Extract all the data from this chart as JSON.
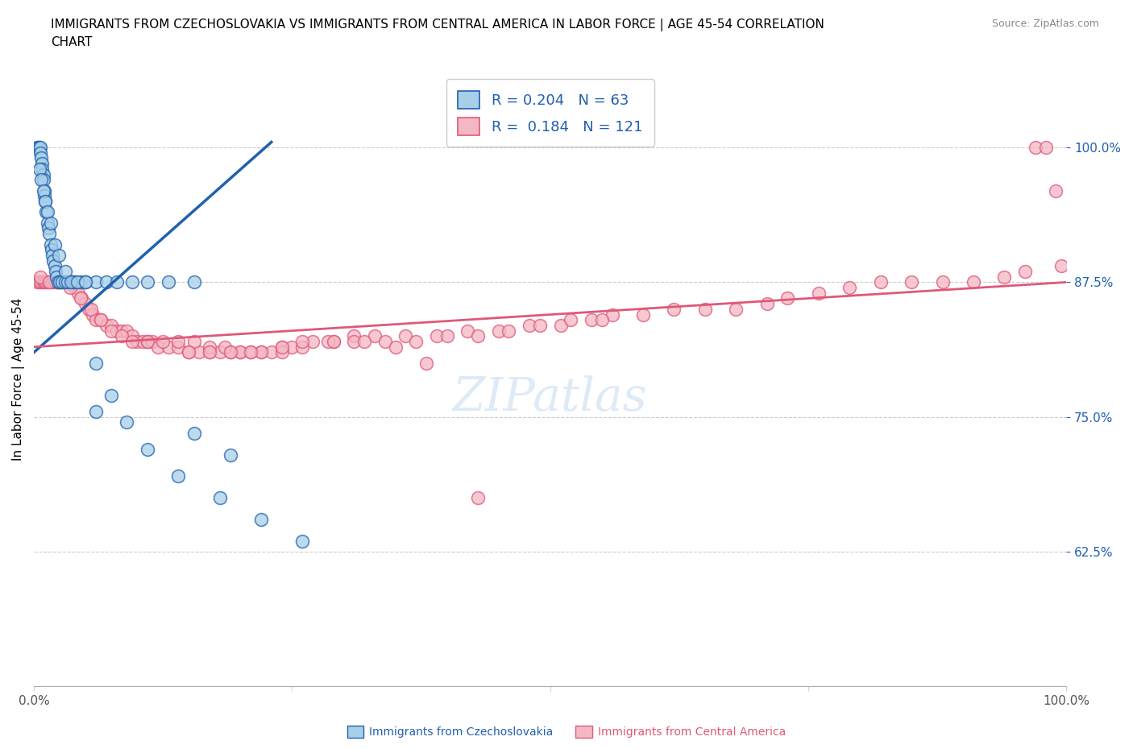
{
  "title": "IMMIGRANTS FROM CZECHOSLOVAKIA VS IMMIGRANTS FROM CENTRAL AMERICA IN LABOR FORCE | AGE 45-54 CORRELATION\nCHART",
  "source": "Source: ZipAtlas.com",
  "ylabel": "In Labor Force | Age 45-54",
  "legend_label1": "Immigrants from Czechoslovakia",
  "legend_label2": "Immigrants from Central America",
  "R1": 0.204,
  "N1": 63,
  "R2": 0.184,
  "N2": 121,
  "color_blue": "#a8cfe8",
  "color_pink": "#f4b8c4",
  "color_blue_line": "#2060b0",
  "color_pink_line": "#e05878",
  "color_stat": "#2060b0",
  "yticks": [
    0.625,
    0.75,
    0.875,
    1.0
  ],
  "ytick_labels": [
    "62.5%",
    "75.0%",
    "87.5%",
    "100.0%"
  ],
  "xlim": [
    0.0,
    1.0
  ],
  "ylim": [
    0.5,
    1.07
  ],
  "watermark": "ZIPatlas",
  "blue_x": [
    0.003,
    0.004,
    0.005,
    0.006,
    0.006,
    0.007,
    0.008,
    0.008,
    0.009,
    0.009,
    0.01,
    0.01,
    0.011,
    0.012,
    0.013,
    0.014,
    0.015,
    0.016,
    0.017,
    0.018,
    0.019,
    0.02,
    0.021,
    0.022,
    0.023,
    0.025,
    0.027,
    0.03,
    0.033,
    0.037,
    0.04,
    0.045,
    0.05,
    0.06,
    0.07,
    0.08,
    0.095,
    0.11,
    0.13,
    0.155,
    0.005,
    0.007,
    0.009,
    0.011,
    0.013,
    0.016,
    0.02,
    0.024,
    0.03,
    0.036,
    0.042,
    0.05,
    0.06,
    0.075,
    0.09,
    0.11,
    0.14,
    0.18,
    0.22,
    0.26,
    0.19,
    0.155,
    0.06
  ],
  "blue_y": [
    1.0,
    1.0,
    1.0,
    1.0,
    0.995,
    0.99,
    0.985,
    0.98,
    0.975,
    0.97,
    0.96,
    0.955,
    0.95,
    0.94,
    0.93,
    0.925,
    0.92,
    0.91,
    0.905,
    0.9,
    0.895,
    0.89,
    0.885,
    0.88,
    0.875,
    0.875,
    0.875,
    0.875,
    0.875,
    0.875,
    0.875,
    0.875,
    0.875,
    0.875,
    0.875,
    0.875,
    0.875,
    0.875,
    0.875,
    0.875,
    0.98,
    0.97,
    0.96,
    0.95,
    0.94,
    0.93,
    0.91,
    0.9,
    0.885,
    0.875,
    0.875,
    0.875,
    0.8,
    0.77,
    0.745,
    0.72,
    0.695,
    0.675,
    0.655,
    0.635,
    0.715,
    0.735,
    0.755
  ],
  "pink_x": [
    0.003,
    0.005,
    0.007,
    0.009,
    0.01,
    0.012,
    0.014,
    0.016,
    0.018,
    0.02,
    0.022,
    0.024,
    0.026,
    0.028,
    0.03,
    0.032,
    0.035,
    0.038,
    0.04,
    0.043,
    0.046,
    0.05,
    0.053,
    0.057,
    0.06,
    0.065,
    0.07,
    0.075,
    0.08,
    0.085,
    0.09,
    0.095,
    0.1,
    0.105,
    0.11,
    0.115,
    0.12,
    0.13,
    0.14,
    0.15,
    0.16,
    0.17,
    0.18,
    0.19,
    0.2,
    0.21,
    0.22,
    0.23,
    0.24,
    0.25,
    0.27,
    0.29,
    0.31,
    0.33,
    0.36,
    0.39,
    0.42,
    0.45,
    0.48,
    0.51,
    0.54,
    0.56,
    0.59,
    0.62,
    0.65,
    0.68,
    0.71,
    0.73,
    0.76,
    0.79,
    0.82,
    0.85,
    0.88,
    0.91,
    0.94,
    0.96,
    0.97,
    0.98,
    0.99,
    0.995,
    0.006,
    0.015,
    0.025,
    0.035,
    0.045,
    0.055,
    0.065,
    0.075,
    0.085,
    0.095,
    0.11,
    0.125,
    0.14,
    0.155,
    0.17,
    0.185,
    0.2,
    0.22,
    0.24,
    0.26,
    0.285,
    0.31,
    0.34,
    0.37,
    0.4,
    0.43,
    0.46,
    0.49,
    0.52,
    0.55,
    0.43,
    0.38,
    0.35,
    0.32,
    0.29,
    0.26,
    0.24,
    0.21,
    0.19,
    0.17,
    0.15
  ],
  "pink_y": [
    0.875,
    0.875,
    0.875,
    0.875,
    0.875,
    0.875,
    0.875,
    0.875,
    0.875,
    0.875,
    0.875,
    0.875,
    0.875,
    0.875,
    0.875,
    0.875,
    0.875,
    0.875,
    0.87,
    0.865,
    0.86,
    0.855,
    0.85,
    0.845,
    0.84,
    0.84,
    0.835,
    0.835,
    0.83,
    0.83,
    0.83,
    0.825,
    0.82,
    0.82,
    0.82,
    0.82,
    0.815,
    0.815,
    0.815,
    0.81,
    0.81,
    0.81,
    0.81,
    0.81,
    0.81,
    0.81,
    0.81,
    0.81,
    0.815,
    0.815,
    0.82,
    0.82,
    0.825,
    0.825,
    0.825,
    0.825,
    0.83,
    0.83,
    0.835,
    0.835,
    0.84,
    0.845,
    0.845,
    0.85,
    0.85,
    0.85,
    0.855,
    0.86,
    0.865,
    0.87,
    0.875,
    0.875,
    0.875,
    0.875,
    0.88,
    0.885,
    1.0,
    1.0,
    0.96,
    0.89,
    0.88,
    0.875,
    0.875,
    0.87,
    0.86,
    0.85,
    0.84,
    0.83,
    0.825,
    0.82,
    0.82,
    0.82,
    0.82,
    0.82,
    0.815,
    0.815,
    0.81,
    0.81,
    0.81,
    0.815,
    0.82,
    0.82,
    0.82,
    0.82,
    0.825,
    0.825,
    0.83,
    0.835,
    0.84,
    0.84,
    0.675,
    0.8,
    0.815,
    0.82,
    0.82,
    0.82,
    0.815,
    0.81,
    0.81,
    0.81,
    0.81
  ]
}
